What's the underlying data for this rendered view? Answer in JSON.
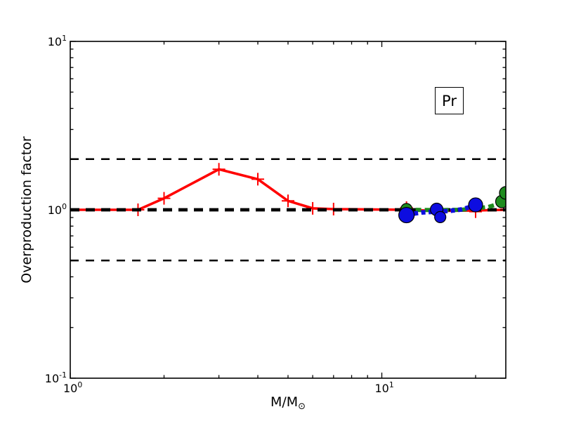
{
  "chart_data": {
    "type": "line",
    "title": "",
    "ylabel": "Overproduction factor",
    "xlabel_main": "M/M",
    "xlabel_sub": "⊙",
    "xlabel_text": "M/M⊙",
    "annotation": "Pr",
    "xscale": "log",
    "yscale": "log",
    "x_axis": {
      "min": 1,
      "max": 25,
      "major": [
        {
          "value": 1,
          "base": "10",
          "exp": "0"
        },
        {
          "value": 10,
          "base": "10",
          "exp": "1"
        }
      ],
      "minor": [
        2,
        3,
        4,
        5,
        6,
        7,
        8,
        9,
        20
      ]
    },
    "y_axis": {
      "min": 0.1,
      "max": 10,
      "major": [
        {
          "value": 10,
          "base": "10",
          "exp": "1"
        },
        {
          "value": 1,
          "base": "10",
          "exp": "0"
        },
        {
          "value": 0.1,
          "base": "10",
          "exp": "-1"
        }
      ],
      "minor": [
        0.2,
        0.3,
        0.4,
        0.5,
        0.6,
        0.7,
        0.8,
        0.9,
        2,
        3,
        4,
        5,
        6,
        7,
        8,
        9
      ]
    },
    "reference_lines": [
      {
        "name": "upper-factor-2",
        "y": 2.0,
        "color": "#000000",
        "width": 2.6,
        "dash": "12 10",
        "layer": "under"
      },
      {
        "name": "lower-factor-2",
        "y": 0.5,
        "color": "#000000",
        "width": 2.6,
        "dash": "12 10",
        "layer": "under"
      },
      {
        "name": "unity",
        "y": 1.0,
        "color": "#000000",
        "width": 4.8,
        "dash": "13 9",
        "layer": "mid"
      }
    ],
    "series": [
      {
        "name": "red-solid-plus",
        "color": "#ff0000",
        "line_style": "solid",
        "line_width": 3.6,
        "dash": "",
        "marker": "plus",
        "marker_size": 9,
        "marker_stroke": 2,
        "line_points": [
          [
            1.0,
            1.0
          ],
          [
            1.65,
            1.0
          ],
          [
            2.0,
            1.17
          ],
          [
            3.0,
            1.74
          ],
          [
            4.0,
            1.52
          ],
          [
            5.0,
            1.13
          ],
          [
            6.0,
            1.02
          ],
          [
            7.0,
            1.01
          ],
          [
            12.0,
            1.0
          ],
          [
            15.0,
            0.985
          ],
          [
            20.0,
            0.99
          ],
          [
            25.0,
            1.0
          ]
        ],
        "markers": [
          [
            1.65,
            1.0
          ],
          [
            2.0,
            1.17
          ],
          [
            3.0,
            1.74
          ],
          [
            4.0,
            1.52
          ],
          [
            5.0,
            1.13
          ],
          [
            6.0,
            1.02
          ],
          [
            7.0,
            1.01
          ],
          [
            12.0,
            1.03
          ],
          [
            15.0,
            0.97
          ],
          [
            20.0,
            0.975
          ]
        ]
      },
      {
        "name": "green-dashed-circles",
        "color": "#1e8c1e",
        "line_style": "dashed",
        "line_width": 6,
        "dash": "8 5",
        "marker": "circle",
        "marker_edge": "#000000",
        "line_points": [
          [
            12.0,
            1.0
          ],
          [
            15.0,
            0.995
          ],
          [
            18.0,
            1.0
          ],
          [
            20.0,
            1.02
          ],
          [
            22.0,
            1.04
          ],
          [
            23.5,
            1.08
          ],
          [
            24.5,
            1.14
          ],
          [
            25.0,
            1.27
          ]
        ],
        "markers": [
          [
            12.0,
            1.01,
            8
          ],
          [
            15.0,
            1.0,
            8
          ],
          [
            24.3,
            1.12,
            9
          ],
          [
            25.0,
            1.26,
            9
          ]
        ]
      },
      {
        "name": "blue-dotted-circles",
        "color": "#0d0de0",
        "line_style": "dotted",
        "line_width": 6.5,
        "dash": "6 4.5",
        "marker": "circle",
        "marker_edge": "#000000",
        "line_points": [
          [
            11.4,
            0.96
          ],
          [
            12.0,
            0.935
          ],
          [
            13.5,
            0.965
          ],
          [
            15.0,
            0.975
          ],
          [
            16.5,
            0.985
          ],
          [
            18.0,
            1.005
          ],
          [
            20.0,
            1.06
          ],
          [
            20.7,
            1.07
          ]
        ],
        "markers": [
          [
            12.0,
            0.93,
            11
          ],
          [
            15.0,
            1.005,
            9
          ],
          [
            15.4,
            0.905,
            8
          ],
          [
            20.0,
            1.07,
            10
          ]
        ]
      }
    ],
    "axis_color": "#000000",
    "tick_label_fontsize": 16
  }
}
